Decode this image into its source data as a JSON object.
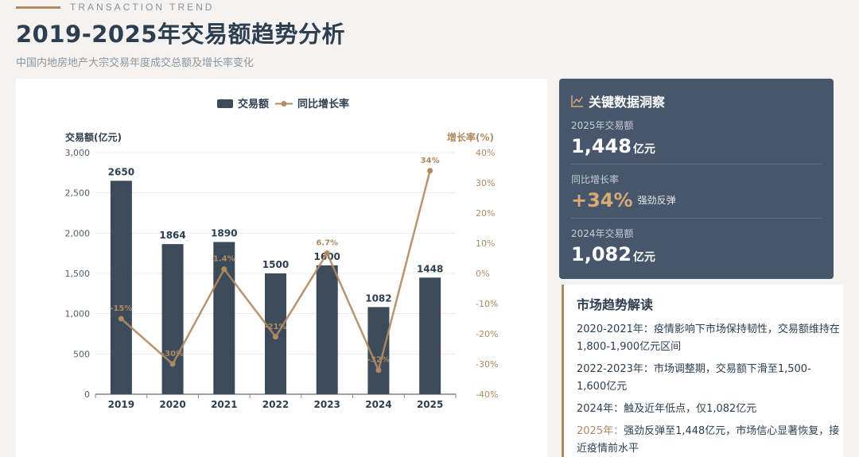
{
  "header": {
    "eyebrow": "TRANSACTION TREND",
    "title": "2019-2025年交易额趋势分析",
    "subtitle": "中国内地房地产大宗交易年度成交总额及增长率变化"
  },
  "colors": {
    "bar": "#3d4a5a",
    "line": "#b08a62",
    "accent": "#d9a978",
    "card_dark": "#47566a"
  },
  "chart_data": {
    "type": "bar",
    "categories": [
      "2019",
      "2020",
      "2021",
      "2022",
      "2023",
      "2024",
      "2025"
    ],
    "series": [
      {
        "name": "交易额",
        "type": "bar",
        "axis": "left",
        "values": [
          2650,
          1864,
          1890,
          1500,
          1600,
          1082,
          1448
        ],
        "labels": [
          "2650",
          "1864",
          "1890",
          "1500",
          "1600",
          "1082",
          "1448"
        ]
      },
      {
        "name": "同比增长率",
        "type": "line",
        "axis": "right",
        "values": [
          -15,
          -30,
          1.4,
          -21,
          6.7,
          -32,
          34
        ],
        "labels": [
          "-15%",
          "-30%",
          "1.4%",
          "-21%",
          "6.7%",
          "-32%",
          "34%"
        ]
      }
    ],
    "y_left": {
      "label": "交易额(亿元)",
      "ylim": [
        0,
        3000
      ],
      "ticks": [
        0,
        500,
        1000,
        1500,
        2000,
        2500,
        3000
      ],
      "tick_labels": [
        "0",
        "500",
        "1,000",
        "1,500",
        "2,000",
        "2,500",
        "3,000"
      ]
    },
    "y_right": {
      "label": "增长率(%)",
      "ylim": [
        -40,
        40
      ],
      "ticks": [
        -40,
        -30,
        -20,
        -10,
        0,
        10,
        20,
        30,
        40
      ],
      "tick_labels": [
        "-40%",
        "-30%",
        "-20%",
        "-10%",
        "0%",
        "10%",
        "20%",
        "30%",
        "40%"
      ]
    },
    "legend": "top-center",
    "grid": true
  },
  "insights": {
    "title": "关键数据洞察",
    "items": [
      {
        "label": "2025年交易额",
        "value": "1,448",
        "unit": "亿元",
        "note": ""
      },
      {
        "label": "同比增长率",
        "value": "+34%",
        "unit": "",
        "note": "强劲反弹"
      },
      {
        "label": "2024年交易额",
        "value": "1,082",
        "unit": "亿元",
        "note": ""
      }
    ]
  },
  "trend": {
    "title": "市场趋势解读",
    "items": [
      {
        "year": "2020-2021年：",
        "text": "疫情影响下市场保持韧性，交易额维持在1,800-1,900亿元区间"
      },
      {
        "year": "2022-2023年：",
        "text": "市场调整期，交易额下滑至1,500-1,600亿元"
      },
      {
        "year": "2024年：",
        "text": "触及近年低点，仅1,082亿元"
      },
      {
        "year": "2025年：",
        "text": "强劲反弹至1,448亿元，市场信心显著恢复，接近疫情前水平"
      }
    ]
  }
}
